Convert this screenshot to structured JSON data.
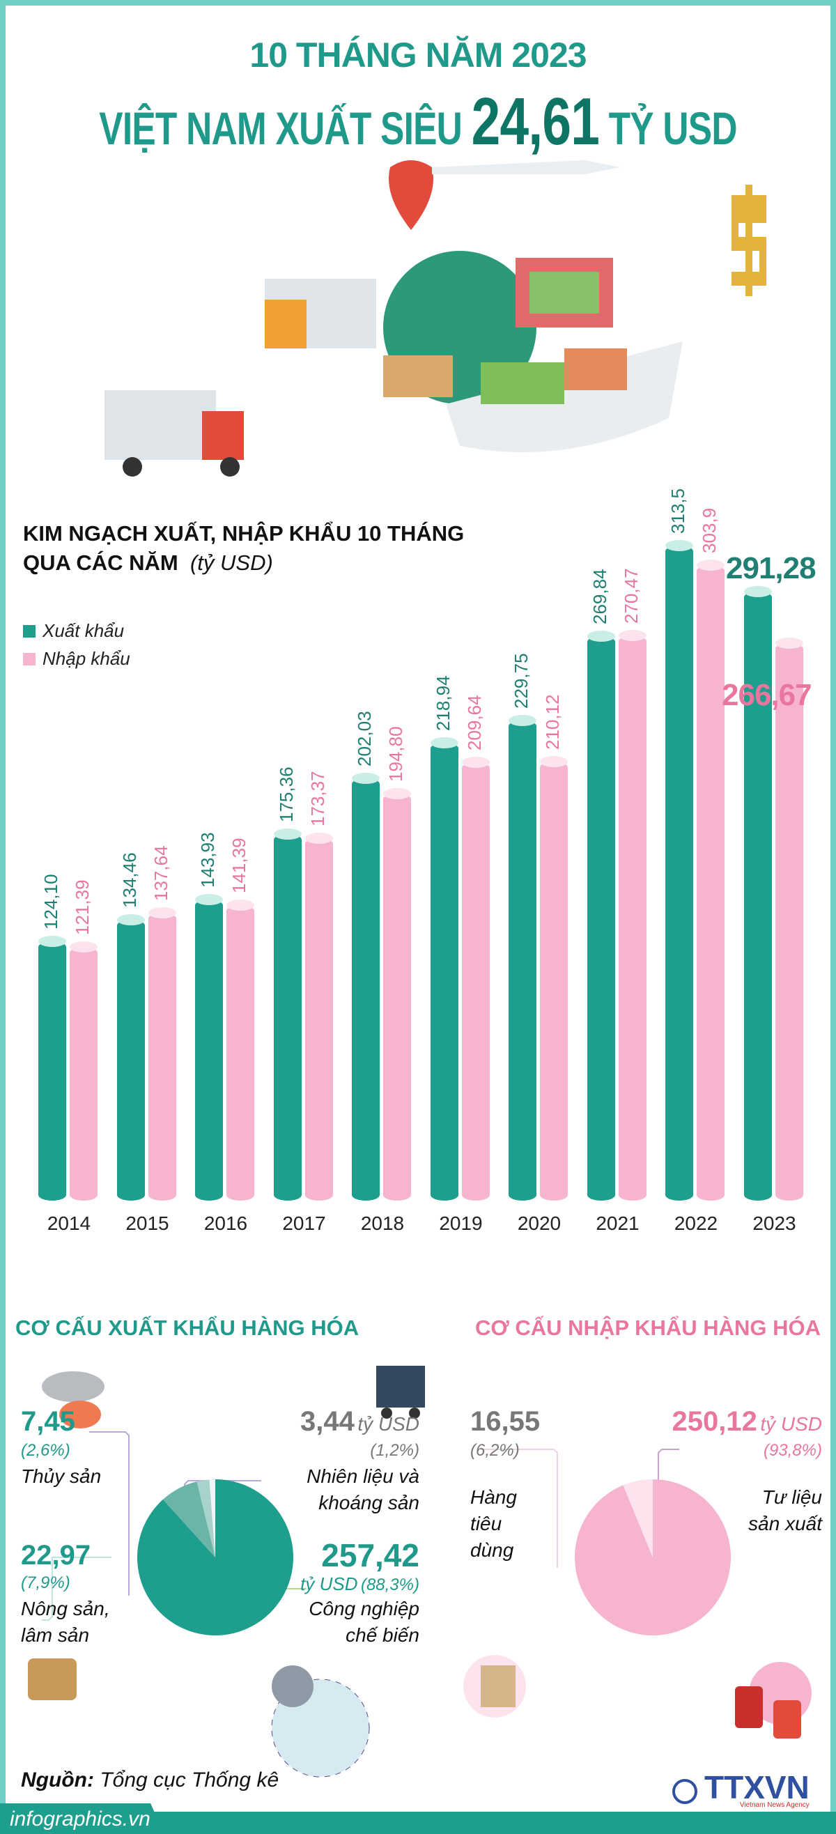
{
  "header": {
    "line1": "10 THÁNG NĂM 2023",
    "line2_prefix": "VIỆT NAM XUẤT SIÊU",
    "line2_value": "24,61",
    "line2_suffix": "TỶ USD"
  },
  "colors": {
    "export": "#1e9e8c",
    "import": "#f7b4cf",
    "title": "#1f9a8a",
    "frame": "#6fcfc4",
    "import_title": "#e8769f"
  },
  "chart_data": {
    "type": "bar",
    "title": "KIM NGẠCH XUẤT, NHẬP KHẨU 10 THÁNG QUA CÁC NĂM",
    "title_line1": "KIM NGẠCH XUẤT, NHẬP KHẨU 10 THÁNG",
    "title_line2": "QUA CÁC NĂM",
    "unit": "(tỷ USD)",
    "categories": [
      "2014",
      "2015",
      "2016",
      "2017",
      "2018",
      "2019",
      "2020",
      "2021",
      "2022",
      "2023"
    ],
    "series": [
      {
        "name": "Xuất khẩu",
        "values": [
          124.1,
          134.46,
          143.93,
          175.36,
          202.03,
          218.94,
          229.75,
          269.84,
          313.5,
          291.28
        ],
        "labels": [
          "124,10",
          "134,46",
          "143,93",
          "175,36",
          "202,03",
          "218,94",
          "229,75",
          "269,84",
          "313,5",
          "291,28"
        ]
      },
      {
        "name": "Nhập khẩu",
        "values": [
          121.39,
          137.64,
          141.39,
          173.37,
          194.8,
          209.64,
          210.12,
          270.47,
          303.9,
          266.67
        ],
        "labels": [
          "121,39",
          "137,64",
          "141,39",
          "173,37",
          "194,80",
          "209,64",
          "210,12",
          "270,47",
          "303,9",
          "266,67"
        ]
      }
    ],
    "legend": "top-left",
    "grid": false
  },
  "export_structure": {
    "title": "CƠ CẤU XUẤT KHẨU HÀNG HÓA",
    "items": [
      {
        "value": "257,42",
        "unit": "tỷ USD",
        "pct": "(88,3%)",
        "label": "Công nghiệp chế biến",
        "share": 88.3,
        "color": "#1e9e8c"
      },
      {
        "value": "22,97",
        "pct": "(7,9%)",
        "label": "Nông sản, lâm sản",
        "share": 7.9,
        "color": "#6ab5a8"
      },
      {
        "value": "7,45",
        "pct": "(2,6%)",
        "label": "Thủy sản",
        "share": 2.6,
        "color": "#a8d3cc"
      },
      {
        "value": "3,44",
        "unit": "tỷ USD",
        "pct": "(1,2%)",
        "label": "Nhiên liệu và khoáng sản",
        "share": 1.2,
        "color": "#eef7f5"
      }
    ]
  },
  "import_structure": {
    "title": "CƠ CẤU NHẬP KHẨU HÀNG HÓA",
    "items": [
      {
        "value": "250,12",
        "unit": "tỷ USD",
        "pct": "(93,8%)",
        "label": "Tư liệu sản xuất",
        "share": 93.8,
        "color": "#f7b4cf"
      },
      {
        "value": "16,55",
        "pct": "(6,2%)",
        "label": "Hàng tiêu dùng",
        "share": 6.2,
        "color": "#fde3ee"
      }
    ]
  },
  "footer": {
    "source_label": "Nguồn:",
    "source": "Tổng cục Thống kê",
    "site": "infographics.vn",
    "logo": "TTXVN",
    "logo_sub": "Vietnam News Agency"
  }
}
